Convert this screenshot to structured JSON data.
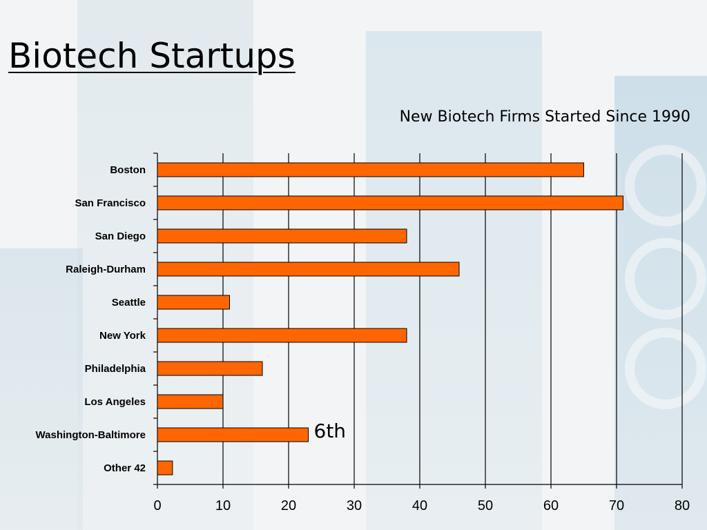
{
  "slide": {
    "title": "Biotech Startups"
  },
  "chart_data": {
    "type": "bar",
    "orientation": "horizontal",
    "title": "New Biotech Firms Started Since 1990",
    "xlabel": "",
    "ylabel": "",
    "categories": [
      "Boston",
      "San Francisco",
      "San Diego",
      "Raleigh-Durham",
      "Seattle",
      "New York",
      "Philadelphia",
      "Los Angeles",
      "Washington-Baltimore",
      "Other 42"
    ],
    "values": [
      65,
      71,
      38,
      46,
      11,
      38,
      16,
      10,
      23,
      2.3
    ],
    "xlim": [
      0,
      80
    ],
    "xticks": [
      "0",
      "10",
      "20",
      "30",
      "40",
      "50",
      "60",
      "70",
      "80"
    ],
    "grid": "vertical",
    "legend": "none",
    "bar_color": "#ff6600",
    "bar_edge_color": "#000000",
    "annotations": [
      {
        "text": "6th",
        "category": "Washington-Baltimore"
      }
    ]
  }
}
